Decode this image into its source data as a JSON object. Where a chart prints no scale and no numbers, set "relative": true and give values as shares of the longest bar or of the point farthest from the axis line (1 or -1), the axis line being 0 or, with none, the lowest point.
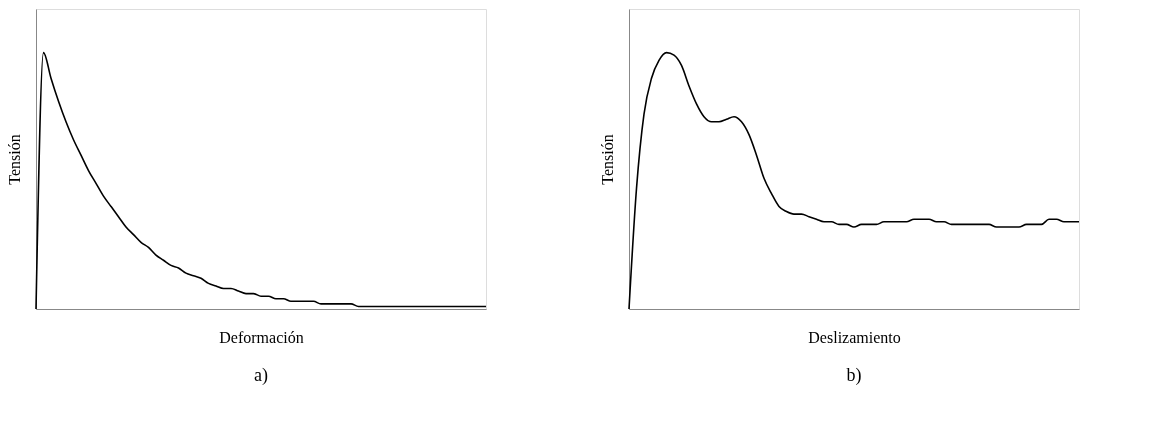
{
  "chart_data": [
    {
      "type": "line",
      "title": "a)",
      "xlabel": "Deformación",
      "ylabel": "Tensión",
      "relative": true,
      "grid": false,
      "legend": false,
      "categories": [
        null,
        null,
        null,
        null,
        null,
        null,
        null,
        null,
        null,
        null,
        null,
        null,
        null,
        null,
        null,
        null,
        null,
        null,
        null,
        null,
        null,
        null,
        null,
        null,
        null,
        null,
        null,
        null,
        null,
        null,
        null,
        null,
        null,
        null,
        null,
        null,
        null,
        null,
        null,
        null,
        null,
        null,
        null,
        null,
        null,
        null,
        null,
        null,
        null,
        null,
        null,
        null,
        null,
        null,
        null,
        null,
        null,
        null,
        null,
        null,
        null
      ],
      "series": [
        {
          "color": "#000000",
          "values": [
            0,
            1.0,
            0.9,
            0.81,
            0.73,
            0.66,
            0.6,
            0.54,
            0.49,
            0.44,
            0.4,
            0.36,
            0.32,
            0.29,
            0.26,
            0.24,
            0.21,
            0.19,
            0.17,
            0.16,
            0.14,
            0.13,
            0.12,
            0.1,
            0.09,
            0.08,
            0.08,
            0.07,
            0.06,
            0.06,
            0.05,
            0.05,
            0.04,
            0.04,
            0.03,
            0.03,
            0.03,
            0.03,
            0.02,
            0.02,
            0.02,
            0.02,
            0.02,
            0.01,
            0.01,
            0.01,
            0.01,
            0.01,
            0.01,
            0.01,
            0.01,
            0.01,
            0.01,
            0.01,
            0.01,
            0.01,
            0.01,
            0.01,
            0.01,
            0.01,
            0.01
          ]
        }
      ]
    },
    {
      "type": "line",
      "title": "b)",
      "xlabel": "Deslizamiento",
      "ylabel": "Tensión",
      "relative": true,
      "grid": false,
      "legend": false,
      "categories": [
        null,
        null,
        null,
        null,
        null,
        null,
        null,
        null,
        null,
        null,
        null,
        null,
        null,
        null,
        null,
        null,
        null,
        null,
        null,
        null,
        null,
        null,
        null,
        null,
        null,
        null,
        null,
        null,
        null,
        null,
        null,
        null,
        null,
        null,
        null,
        null,
        null,
        null,
        null,
        null,
        null,
        null,
        null,
        null,
        null,
        null,
        null,
        null,
        null,
        null,
        null,
        null,
        null,
        null,
        null,
        null,
        null,
        null,
        null,
        null,
        null
      ],
      "series": [
        {
          "color": "#000000",
          "values": [
            0,
            0.47,
            0.76,
            0.9,
            0.97,
            1.0,
            0.99,
            0.95,
            0.87,
            0.8,
            0.75,
            0.73,
            0.73,
            0.74,
            0.75,
            0.73,
            0.68,
            0.6,
            0.51,
            0.45,
            0.4,
            0.38,
            0.37,
            0.37,
            0.36,
            0.35,
            0.34,
            0.34,
            0.33,
            0.33,
            0.32,
            0.33,
            0.33,
            0.33,
            0.34,
            0.34,
            0.34,
            0.34,
            0.35,
            0.35,
            0.35,
            0.34,
            0.34,
            0.33,
            0.33,
            0.33,
            0.33,
            0.33,
            0.33,
            0.32,
            0.32,
            0.32,
            0.32,
            0.33,
            0.33,
            0.33,
            0.35,
            0.35,
            0.34,
            0.34,
            0.34
          ]
        }
      ]
    }
  ]
}
